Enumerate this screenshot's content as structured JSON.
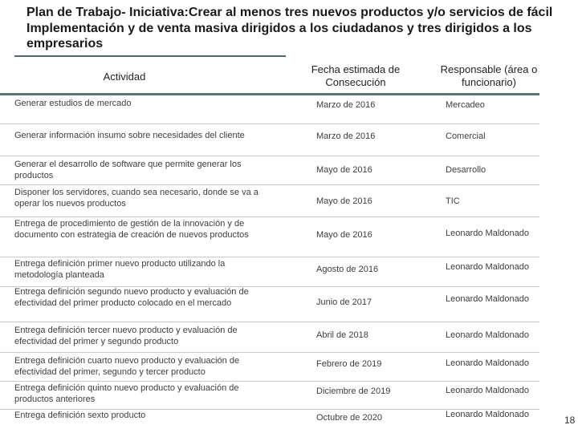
{
  "title": "Plan de Trabajo- Iniciativa:Crear al menos tres nuevos productos y/o servicios de fácil Implementación y de venta masiva dirigidos a los ciudadanos y tres dirigidos a los empresarios",
  "table": {
    "headers": {
      "activity": "Actividad",
      "date": "Fecha estimada de Consecución",
      "responsible": "Responsable (área o funcionario)"
    },
    "rows": [
      {
        "activity": "Generar estudios de mercado",
        "date": "Marzo de 2016",
        "responsible": "Mercadeo"
      },
      {
        "activity": "Generar información insumo sobre necesidades del cliente",
        "date": "Marzo de 2016",
        "responsible": "Comercial"
      },
      {
        "activity": "Generar el desarrollo de software que permite generar los productos",
        "date": "Mayo de 2016",
        "responsible": "Desarrollo"
      },
      {
        "activity": "Disponer los servidores, cuando sea necesario, donde se va a operar los nuevos productos",
        "date": "Mayo de 2016",
        "responsible": "TIC"
      },
      {
        "activity": "Entrega de procedimiento de gestión de la innovación y de documento con estrategia de creación de nuevos productos",
        "date": "Mayo de 2016",
        "responsible": "Leonardo Maldonado"
      },
      {
        "activity": "Entrega definición primer nuevo producto utilizando la metodología planteada",
        "date": "Agosto de 2016",
        "responsible": "Leonardo Maldonado"
      },
      {
        "activity": "Entrega definición segundo nuevo producto y evaluación de efectividad del primer producto colocado en el mercado",
        "date": "Junio de 2017",
        "responsible": "Leonardo Maldonado"
      },
      {
        "activity": "Entrega definición tercer nuevo producto y evaluación de efectividad del primer y segundo producto",
        "date": "Abril de 2018",
        "responsible": "Leonardo Maldonado"
      },
      {
        "activity": "Entrega definición cuarto nuevo producto y evaluación de efectividad del primer, segundo y tercer producto",
        "date": "Febrero de 2019",
        "responsible": "Leonardo Maldonado"
      },
      {
        "activity": "Entrega definición quinto nuevo producto y evaluación de productos anteriores",
        "date": "Diciembre de 2019",
        "responsible": "Leonardo Maldonado"
      },
      {
        "activity": "Entrega definición sexto producto",
        "date": "Octubre de 2020",
        "responsible": "Leonardo Maldonado"
      }
    ]
  },
  "page_number": "18"
}
